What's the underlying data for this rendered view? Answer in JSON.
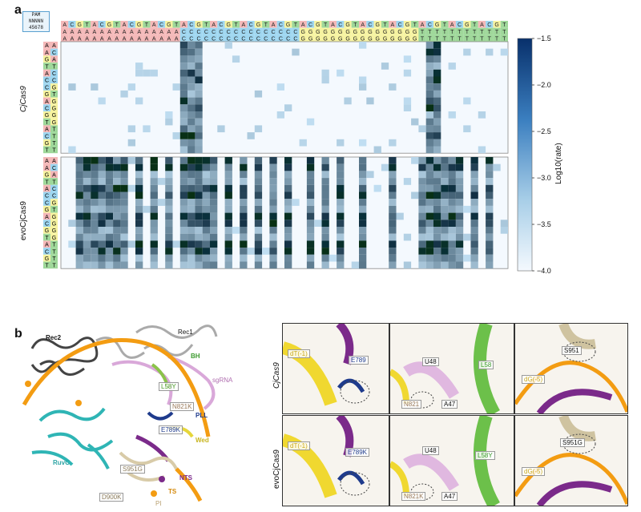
{
  "panel_a": {
    "letter": "a",
    "pam_title": "PAM",
    "pam_seq": "NNNNN",
    "pam_pos": "45678",
    "top_rows": [
      "ACGTACGTACGTACGTACGTACGTACGTACGTACGTACGTACGTACGTACGTACGTACGT",
      "AAAAAAAAAAAAAAAACCCCCCCCCCCCCCCCGGGGGGGGGGGGGGGGTTTTTTTTTTTT",
      "AAAAAAAAAAAAAAAACCCCCCCCCCCCCCCCGGGGGGGGGGGGGGGGTTTTTTTTTTTT"
    ],
    "left_col1": [
      "A",
      "A",
      "G",
      "T",
      "A",
      "C",
      "C",
      "G",
      "A",
      "C",
      "G",
      "T",
      "A",
      "C",
      "G",
      "T"
    ],
    "left_col2": [
      "A",
      "C",
      "A",
      "T",
      "C",
      "C",
      "G",
      "T",
      "G",
      "G",
      "G",
      "G",
      "T",
      "T",
      "T",
      "T"
    ],
    "group1_label": "CjCas9",
    "group2_label": "evoCjCas9",
    "colorbar_label": "Log10(rate)",
    "colorbar_ticks": [
      "−1.5",
      "−2.0",
      "−2.5",
      "−3.0",
      "−3.5",
      "−4.0"
    ],
    "colors": {
      "low": "#f4f9fe",
      "high": "#08306b",
      "A": "#f4b8b8",
      "C": "#9ed6f0",
      "G": "#f6f3a0",
      "T": "#9fd89a"
    }
  },
  "chart_data": {
    "type": "heatmap",
    "colorbar": {
      "label": "Log10(rate)",
      "range": [
        -4.0,
        -1.5
      ]
    },
    "groups": [
      "CjCas9",
      "evoCjCas9"
    ],
    "hot_columns_cj": [
      16,
      17,
      18,
      49,
      50
    ],
    "hot_columns_evo": [
      2,
      3,
      4,
      5,
      6,
      7,
      8,
      10,
      12,
      14,
      16,
      17,
      18,
      19,
      20,
      22,
      24,
      26,
      28,
      30,
      33,
      35,
      37,
      40,
      44,
      48,
      49,
      50,
      51,
      52,
      53,
      55,
      57
    ]
  },
  "panel_b": {
    "letter": "b",
    "labels": {
      "rec2": "Rec2",
      "rec1": "Rec1",
      "bh": "BH",
      "sgrna": "sgRNA",
      "l58y": "L58Y",
      "n821k": "N821K",
      "pll": "PLL",
      "e789k": "E789K",
      "wed": "Wed",
      "ruvc": "RuvC",
      "s951g": "S951G",
      "nts": "NTS",
      "ts": "TS",
      "d900k": "D900K",
      "pi": "PI"
    },
    "row1_label": "CjCas9",
    "row2_label": "evoCjCas9",
    "zoom": {
      "r1c1": [
        "dT(-1)",
        "E789"
      ],
      "r1c2": [
        "U48",
        "L58",
        "N821",
        "A47"
      ],
      "r1c3": [
        "S951",
        "dG(-5)"
      ],
      "r2c1": [
        "dT(-1)",
        "E789K"
      ],
      "r2c2": [
        "U48",
        "L58Y",
        "N821K",
        "A47"
      ],
      "r2c3": [
        "S951G",
        "dG(-5)"
      ]
    }
  }
}
